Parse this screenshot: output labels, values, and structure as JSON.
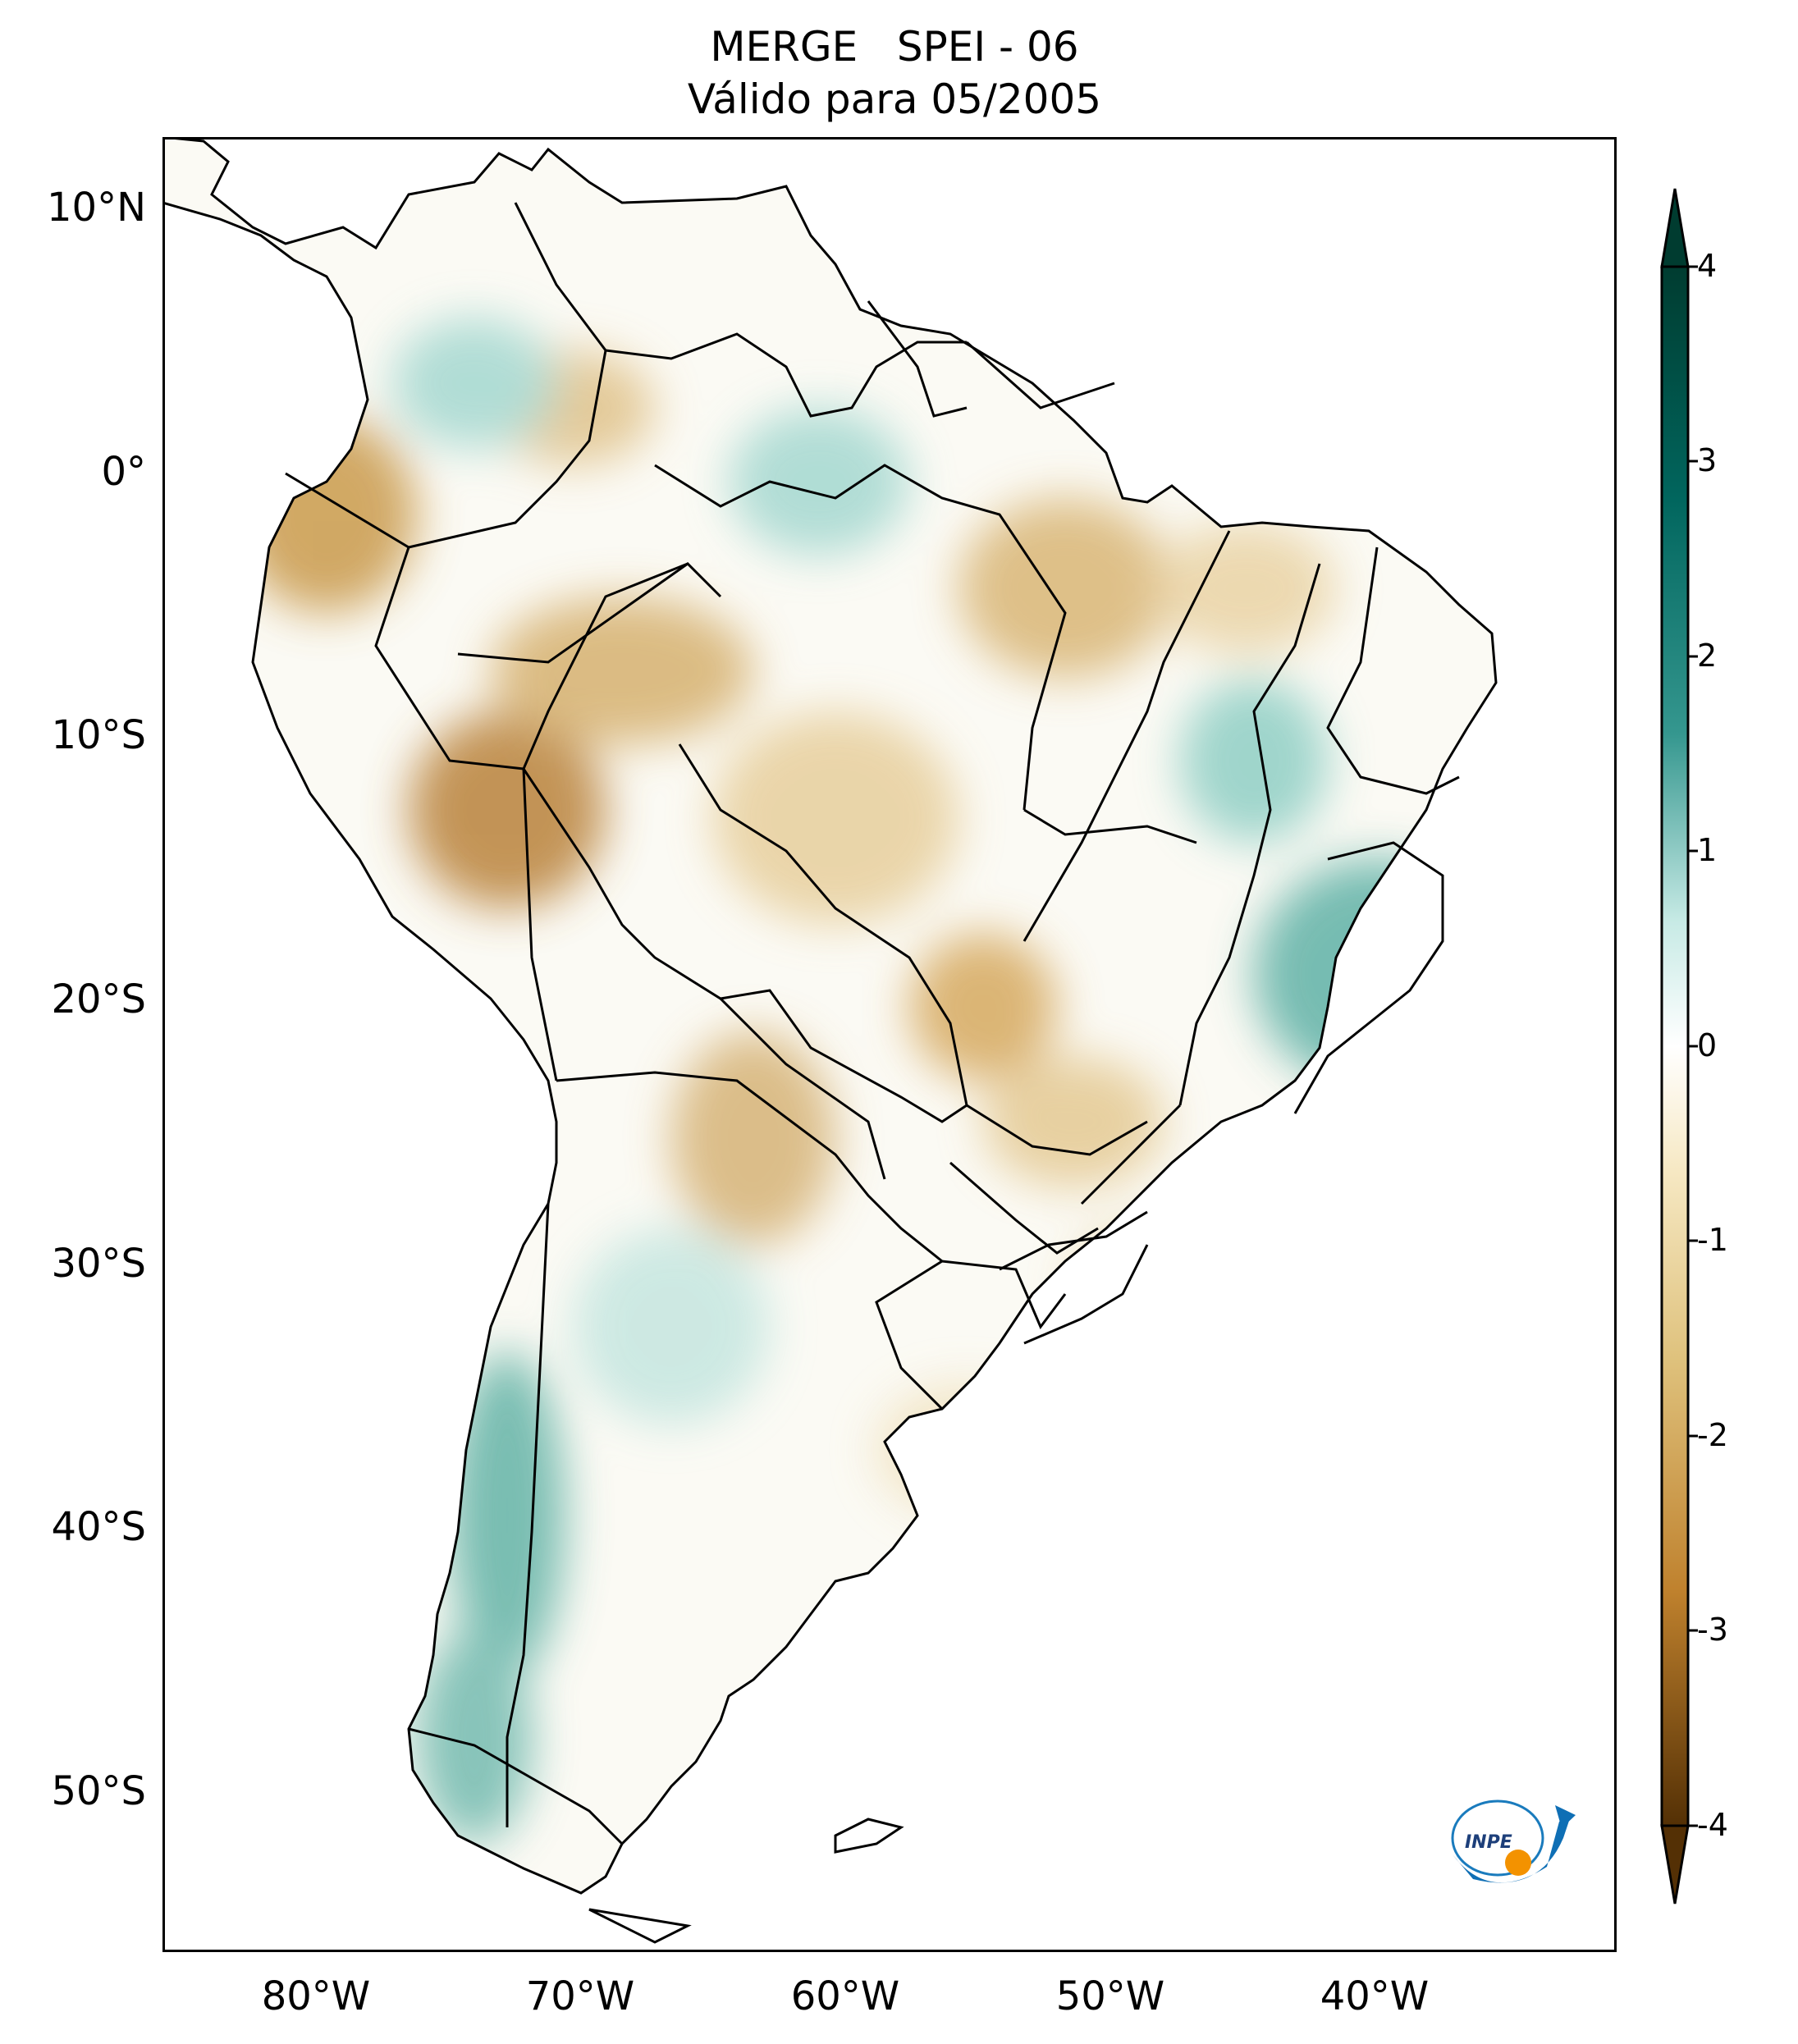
{
  "title": {
    "line1": "MERGE   SPEI - 06",
    "line2": "Válido para 05/2005"
  },
  "lat_ticks": [
    "10°N",
    "0°",
    "10°S",
    "20°S",
    "30°S",
    "40°S",
    "50°S"
  ],
  "lon_ticks": [
    "80°W",
    "70°W",
    "60°W",
    "50°W",
    "40°W"
  ],
  "colorbar": {
    "ticks": [
      "4",
      "3",
      "2",
      "1",
      "0",
      "-1",
      "-2",
      "-3",
      "-4"
    ],
    "min": -4,
    "max": 4,
    "colors": {
      "dry_extreme": "#543005",
      "dry": "#bf812d",
      "dry_light": "#f6e8c3",
      "neutral": "#ffffff",
      "wet_light": "#c7eae5",
      "wet": "#35978f",
      "wet_extreme": "#003c30"
    }
  },
  "logo": {
    "text": "INPE"
  }
}
